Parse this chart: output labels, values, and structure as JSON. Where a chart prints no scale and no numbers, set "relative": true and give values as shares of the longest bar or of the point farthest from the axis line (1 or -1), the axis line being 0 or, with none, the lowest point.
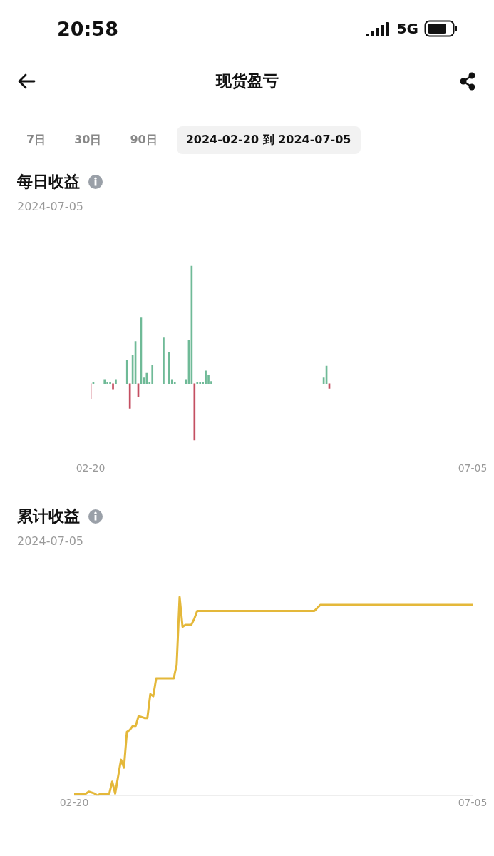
{
  "chart_data": [
    {
      "type": "other",
      "title": "现货盈亏",
      "annotations": [
        "20:58",
        "5G",
        "7日",
        "30日",
        "90日",
        "2024-02-20 到 2024-07-05"
      ]
    },
    {
      "type": "bar",
      "title": "每日收益",
      "subtitle": "2024-07-05",
      "relative": true,
      "legend": false,
      "x": [
        "--02-20",
        "--02-21",
        "--02-25",
        "--02-26",
        "--02-27",
        "--02-28",
        "--02-29",
        "--03-04",
        "--03-05",
        "--03-06",
        "--03-07",
        "--03-08",
        "--03-09",
        "--03-10",
        "--03-11",
        "--03-12",
        "--03-13",
        "--03-17",
        "--03-19",
        "--03-20",
        "--03-21",
        "--03-25",
        "--03-26",
        "--03-27",
        "--03-28",
        "--03-29",
        "--03-30",
        "--03-31",
        "--04-01",
        "--04-02",
        "--04-03",
        "--05-13",
        "--05-14",
        "--05-15"
      ],
      "values": [
        -0.13,
        0.01,
        0.03,
        0.01,
        0.01,
        -0.05,
        0.03,
        0.2,
        -0.21,
        0.24,
        0.36,
        -0.11,
        0.56,
        0.05,
        0.09,
        0.01,
        0.16,
        0.39,
        0.27,
        0.03,
        0.01,
        0.03,
        0.37,
        1,
        -0.48,
        0.01,
        0.01,
        0.01,
        0.11,
        0.07,
        0.02,
        0.05,
        0.15,
        -0.04
      ],
      "colors": [
        "#c44f62",
        "#6fba97",
        "#6fba97",
        "#6fba97",
        "#6fba97",
        "#c44f62",
        "#6fba97",
        "#6fba97",
        "#c44f62",
        "#6fba97",
        "#6fba97",
        "#c44f62",
        "#6fba97",
        "#6fba97",
        "#6fba97",
        "#6fba97",
        "#6fba97",
        "#6fba97",
        "#6fba97",
        "#6fba97",
        "#6fba97",
        "#6fba97",
        "#6fba97",
        "#6fba97",
        "#c44f62",
        "#6fba97",
        "#6fba97",
        "#6fba97",
        "#6fba97",
        "#6fba97",
        "#6fba97",
        "#6fba97",
        "#6fba97",
        "#c44f62"
      ],
      "xlim": [
        "--02-20",
        "--07-05"
      ],
      "xticks": [
        {
          "value": "--02-20",
          "label": "02-20"
        },
        {
          "value": "--07-05",
          "label": "07-05"
        }
      ]
    },
    {
      "type": "line",
      "title": "累计收益",
      "subtitle": "2024-07-05",
      "relative": true,
      "legend": false,
      "x": [
        "--02-20",
        "--02-24",
        "--02-25",
        "--02-27",
        "--02-28",
        "--02-29",
        "--03-03",
        "--03-04",
        "--03-05",
        "--03-07",
        "--03-08",
        "--03-09",
        "--03-10",
        "--03-11",
        "--03-12",
        "--03-13",
        "--03-15",
        "--03-16",
        "--03-17",
        "--03-18",
        "--03-19",
        "--03-25",
        "--03-26",
        "--03-27",
        "--03-28",
        "--03-29",
        "--03-31",
        "--04-01",
        "--04-02",
        "--05-12",
        "--05-14",
        "--07-05"
      ],
      "series": [
        {
          "color": "#e4b83a",
          "values": [
            0.01,
            0.01,
            0.02,
            0.01,
            0,
            0.01,
            0.01,
            0.07,
            0.01,
            0.18,
            0.14,
            0.32,
            0.33,
            0.35,
            0.35,
            0.4,
            0.39,
            0.39,
            0.51,
            0.5,
            0.59,
            0.59,
            0.66,
            1,
            0.85,
            0.86,
            0.86,
            0.89,
            0.93,
            0.93,
            0.96,
            0.96
          ]
        }
      ],
      "xlim": [
        "--02-20",
        "--07-05"
      ],
      "xticks": [
        {
          "value": "--02-20",
          "label": "02-20"
        },
        {
          "value": "--07-05",
          "label": "07-05"
        }
      ]
    }
  ]
}
